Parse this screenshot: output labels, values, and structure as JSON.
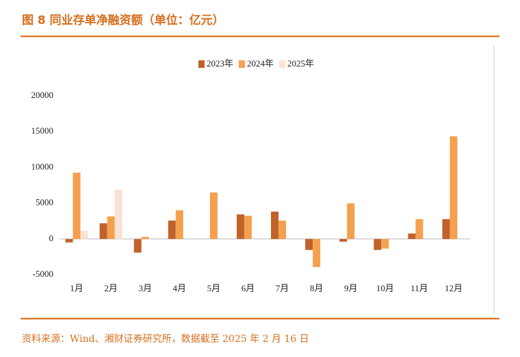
{
  "title": "图 8 同业存单净融资额（单位：亿元）",
  "source": "资料来源：Wind、湘财证券研究所，数据截至 2025 年 2 月 16 日",
  "chart_data": {
    "type": "bar",
    "categories": [
      "1月",
      "2月",
      "3月",
      "4月",
      "5月",
      "6月",
      "7月",
      "8月",
      "9月",
      "10月",
      "11月",
      "12月"
    ],
    "series": [
      {
        "name": "2023年",
        "color": "#c0622b",
        "values": [
          -480,
          2200,
          -1900,
          2580,
          null,
          3440,
          3830,
          -1530,
          -380,
          -1530,
          770,
          2780
        ]
      },
      {
        "name": "2024年",
        "color": "#f5a04f",
        "values": [
          9280,
          3160,
          300,
          4020,
          6500,
          3250,
          2580,
          -3920,
          4980,
          -1340,
          2780,
          14350
        ]
      },
      {
        "name": "2025年",
        "color": "#fbe3d3",
        "values": [
          1150,
          6890,
          null,
          null,
          null,
          null,
          null,
          null,
          null,
          null,
          null,
          null
        ]
      }
    ],
    "ylim": [
      -5000,
      20000
    ],
    "yticks": [
      -5000,
      0,
      5000,
      10000,
      15000,
      20000
    ]
  }
}
